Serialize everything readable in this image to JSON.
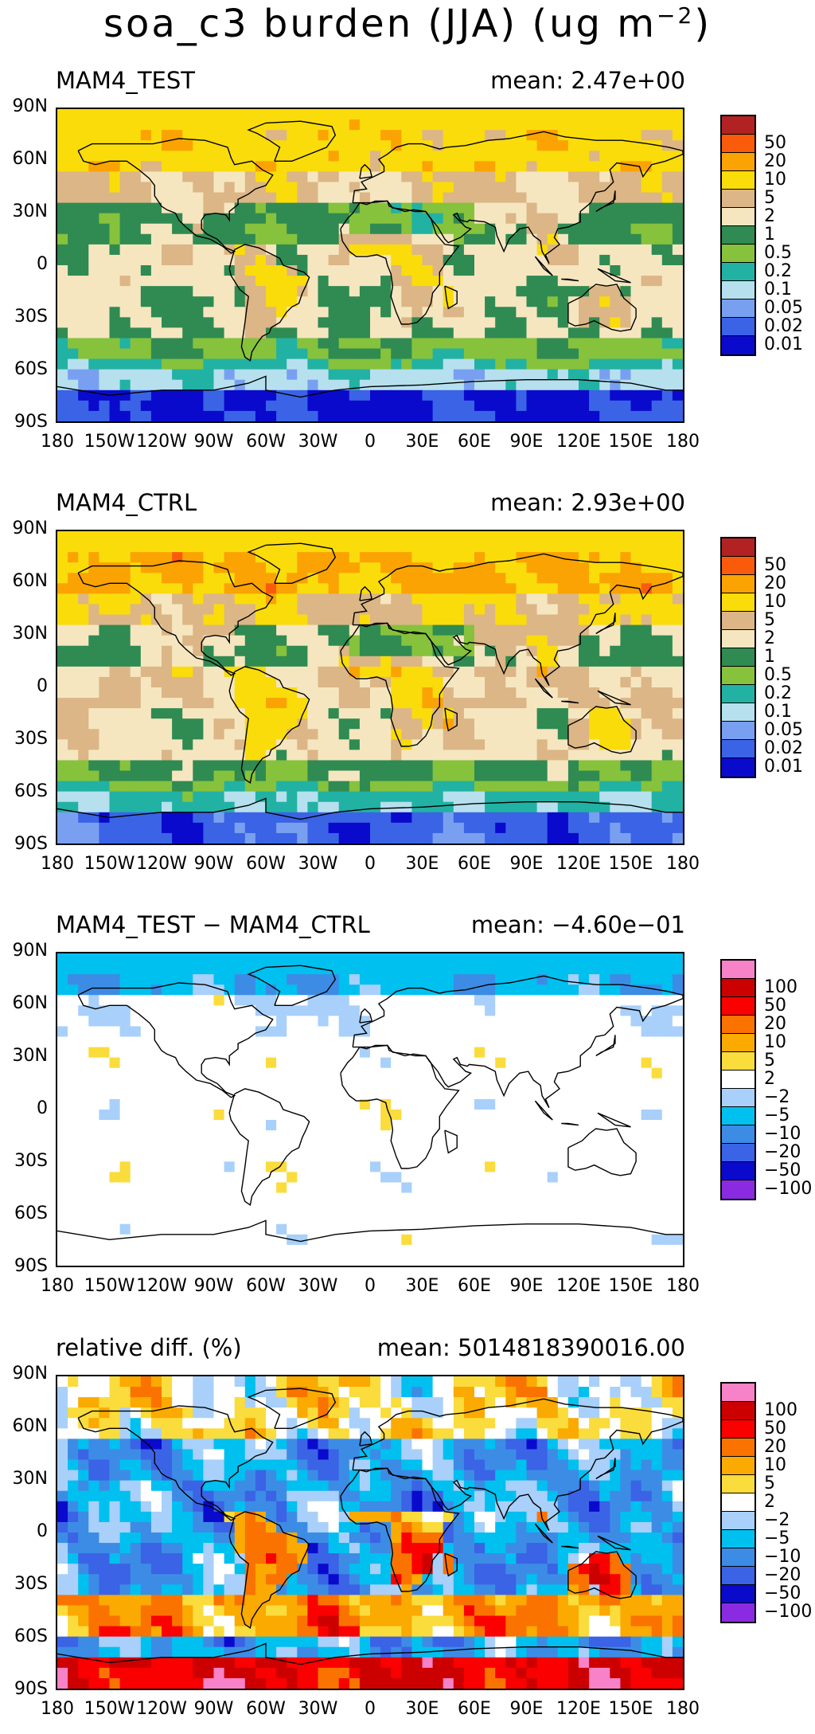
{
  "figure_title": {
    "main": "soa_c3 burden (JJA) (ug m",
    "exponent": "−2",
    "close": ")"
  },
  "colors": {
    "burden": [
      "#0a0acd",
      "#3b63e6",
      "#79a0f0",
      "#b6e0ee",
      "#21b2a4",
      "#86c23c",
      "#2f8b52",
      "#f5e6c0",
      "#dcb686",
      "#fadc0a",
      "#fba302",
      "#fa5b0a",
      "#b22222"
    ],
    "diff": [
      "#8a2be2",
      "#0a0acd",
      "#3b63e6",
      "#3c8ce6",
      "#00c0f0",
      "#a8d0fa",
      "#ffffff",
      "#fadc3c",
      "#faaa00",
      "#fa7300",
      "#fa0000",
      "#cd0000",
      "#f782c8"
    ]
  },
  "chart_data": [
    {
      "type": "heatmap",
      "title": "MAM4_TEST",
      "annotation": "mean: 2.47e+00",
      "y_ticks": [
        "90N",
        "60N",
        "30N",
        "0",
        "30S",
        "60S",
        "90S"
      ],
      "x_ticks": [
        "180",
        "150W",
        "120W",
        "90W",
        "60W",
        "30W",
        "0",
        "30E",
        "60E",
        "90E",
        "120E",
        "150E",
        "180"
      ],
      "colorbar_levels": [
        "0.01",
        "0.02",
        "0.05",
        "0.1",
        "0.2",
        "0.5",
        "1",
        "2",
        "5",
        "10",
        "20",
        "50"
      ],
      "palette": "burden",
      "mean": 2.47
    },
    {
      "type": "heatmap",
      "title": "MAM4_CTRL",
      "annotation": "mean: 2.93e+00",
      "y_ticks": [
        "90N",
        "60N",
        "30N",
        "0",
        "30S",
        "60S",
        "90S"
      ],
      "x_ticks": [
        "180",
        "150W",
        "120W",
        "90W",
        "60W",
        "30W",
        "0",
        "30E",
        "60E",
        "90E",
        "120E",
        "150E",
        "180"
      ],
      "colorbar_levels": [
        "0.01",
        "0.02",
        "0.05",
        "0.1",
        "0.2",
        "0.5",
        "1",
        "2",
        "5",
        "10",
        "20",
        "50"
      ],
      "palette": "burden",
      "mean": 2.93
    },
    {
      "type": "heatmap",
      "title": "MAM4_TEST − MAM4_CTRL",
      "annotation": "mean: −4.60e−01",
      "y_ticks": [
        "90N",
        "60N",
        "30N",
        "0",
        "30S",
        "60S",
        "90S"
      ],
      "x_ticks": [
        "180",
        "150W",
        "120W",
        "90W",
        "60W",
        "30W",
        "0",
        "30E",
        "60E",
        "90E",
        "120E",
        "150E",
        "180"
      ],
      "colorbar_levels": [
        "−100",
        "−50",
        "−20",
        "−10",
        "−5",
        "−2",
        "2",
        "5",
        "10",
        "20",
        "50",
        "100"
      ],
      "palette": "diff",
      "mean": -0.46
    },
    {
      "type": "heatmap",
      "title": "relative diff. (%)",
      "annotation": "mean: 5014818390016.00",
      "y_ticks": [
        "90N",
        "60N",
        "30N",
        "0",
        "30S",
        "60S",
        "90S"
      ],
      "x_ticks": [
        "180",
        "150W",
        "120W",
        "90W",
        "60W",
        "30W",
        "0",
        "30E",
        "60E",
        "90E",
        "120E",
        "150E",
        "180"
      ],
      "colorbar_levels": [
        "−100",
        "−50",
        "−20",
        "−10",
        "−5",
        "−2",
        "2",
        "5",
        "10",
        "20",
        "50",
        "100"
      ],
      "palette": "diff",
      "mean": 5014818390016.0
    }
  ]
}
